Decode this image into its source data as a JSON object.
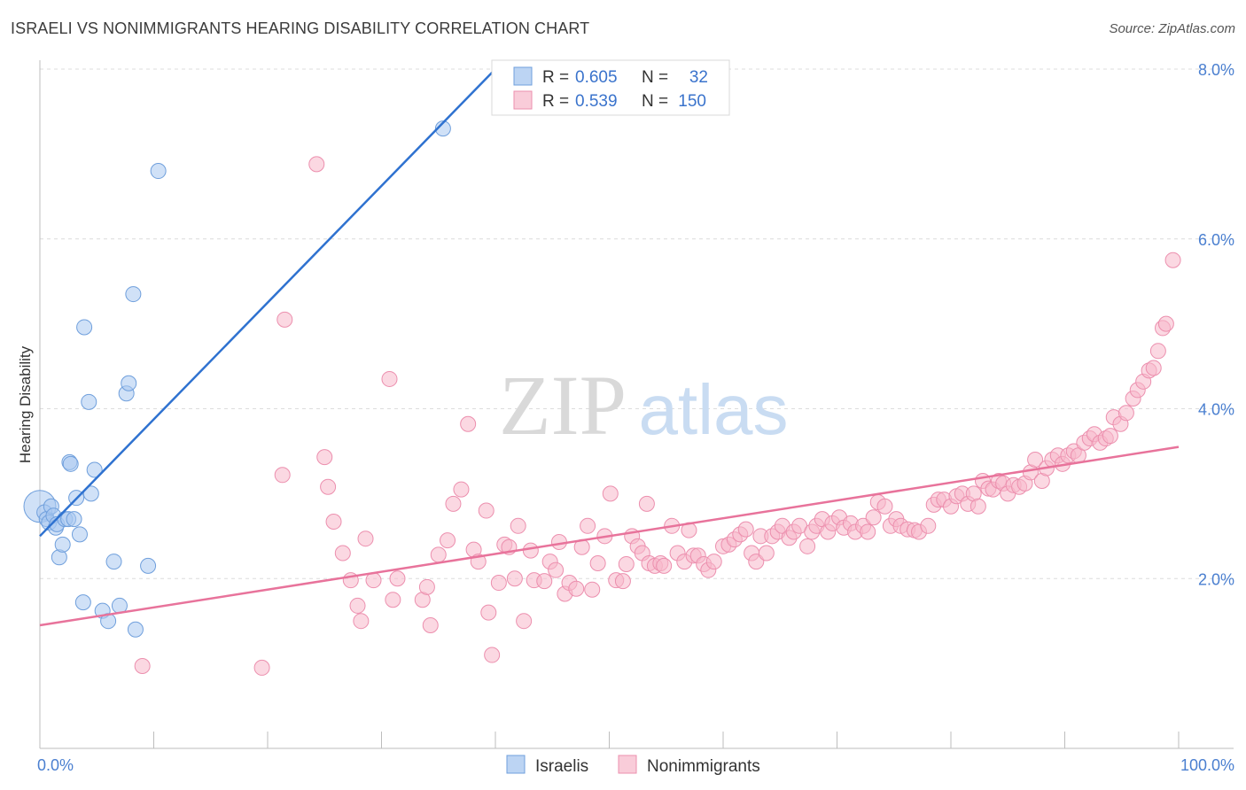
{
  "title": "ISRAELI VS NONIMMIGRANTS HEARING DISABILITY CORRELATION CHART",
  "source": "Source: ZipAtlas.com",
  "watermark": {
    "zip": "ZIP",
    "atlas": "atlas"
  },
  "colors": {
    "israelis_fill": "#a9c8f0",
    "israelis_stroke": "#6f9fdc",
    "israelis_line": "#2f72d0",
    "nonimm_fill": "#f7b8cb",
    "nonimm_stroke": "#ec8fae",
    "nonimm_line": "#e8739b",
    "tick_text": "#4a7fd0",
    "grid": "#dcdcdc"
  },
  "legend": {
    "row1": {
      "r_label": "R =",
      "r_value": "0.605",
      "n_label": "N =",
      "n_value": "32"
    },
    "row2": {
      "r_label": "R =",
      "r_value": "0.539",
      "n_label": "N =",
      "n_value": "150"
    }
  },
  "chart_data": {
    "type": "scatter",
    "title": "ISRAELI VS NONIMMIGRANTS HEARING DISABILITY CORRELATION CHART",
    "xlabel": "",
    "ylabel": "Hearing Disability",
    "xlim": [
      0,
      100
    ],
    "ylim": [
      0,
      8.0
    ],
    "x_tick_labels": [
      "0.0%",
      "100.0%"
    ],
    "y_ticks": [
      2.0,
      4.0,
      6.0,
      8.0
    ],
    "y_tick_labels": [
      "2.0%",
      "4.0%",
      "6.0%",
      "8.0%"
    ],
    "legend_position": "top-center",
    "series": [
      {
        "name": "Israelis",
        "trend": {
          "x0": 0,
          "y0": 2.5,
          "x1": 40,
          "y1": 8.0
        },
        "points": [
          [
            0,
            2.85
          ],
          [
            0.4,
            2.78
          ],
          [
            0.6,
            2.7
          ],
          [
            0.8,
            2.66
          ],
          [
            1.0,
            2.85
          ],
          [
            1.2,
            2.74
          ],
          [
            1.4,
            2.6
          ],
          [
            1.5,
            2.64
          ],
          [
            1.7,
            2.25
          ],
          [
            2.0,
            2.4
          ],
          [
            2.2,
            2.7
          ],
          [
            2.5,
            2.7
          ],
          [
            2.6,
            3.37
          ],
          [
            2.7,
            3.35
          ],
          [
            3.0,
            2.7
          ],
          [
            3.2,
            2.95
          ],
          [
            3.5,
            2.52
          ],
          [
            3.8,
            1.72
          ],
          [
            3.9,
            4.96
          ],
          [
            4.3,
            4.08
          ],
          [
            4.5,
            3.0
          ],
          [
            4.8,
            3.28
          ],
          [
            5.5,
            1.62
          ],
          [
            6.0,
            1.5
          ],
          [
            6.5,
            2.2
          ],
          [
            7.0,
            1.68
          ],
          [
            7.6,
            4.18
          ],
          [
            7.8,
            4.3
          ],
          [
            8.2,
            5.35
          ],
          [
            8.4,
            1.4
          ],
          [
            9.5,
            2.15
          ],
          [
            10.4,
            6.8
          ],
          [
            35.4,
            7.3
          ]
        ]
      },
      {
        "name": "Nonimmigrants",
        "trend": {
          "x0": 0,
          "y0": 1.45,
          "x1": 100,
          "y1": 3.55
        },
        "points": [
          [
            9,
            0.97
          ],
          [
            19.5,
            0.95
          ],
          [
            21.3,
            3.22
          ],
          [
            21.5,
            5.05
          ],
          [
            24.3,
            6.88
          ],
          [
            25.0,
            3.43
          ],
          [
            25.3,
            3.08
          ],
          [
            25.8,
            2.67
          ],
          [
            26.6,
            2.3
          ],
          [
            27.3,
            1.98
          ],
          [
            27.9,
            1.68
          ],
          [
            28.2,
            1.5
          ],
          [
            28.6,
            2.47
          ],
          [
            29.3,
            1.98
          ],
          [
            30.7,
            4.35
          ],
          [
            31.0,
            1.75
          ],
          [
            31.4,
            2.0
          ],
          [
            33.6,
            1.75
          ],
          [
            34.0,
            1.9
          ],
          [
            34.3,
            1.45
          ],
          [
            35.0,
            2.28
          ],
          [
            35.8,
            2.45
          ],
          [
            36.3,
            2.88
          ],
          [
            37.0,
            3.05
          ],
          [
            37.6,
            3.82
          ],
          [
            38.1,
            2.34
          ],
          [
            38.5,
            2.2
          ],
          [
            39.2,
            2.8
          ],
          [
            39.4,
            1.6
          ],
          [
            39.7,
            1.1
          ],
          [
            40.3,
            1.95
          ],
          [
            40.8,
            2.4
          ],
          [
            41.2,
            2.37
          ],
          [
            41.7,
            2.0
          ],
          [
            42.0,
            2.62
          ],
          [
            42.5,
            1.5
          ],
          [
            43.1,
            2.33
          ],
          [
            43.4,
            1.98
          ],
          [
            44.3,
            1.97
          ],
          [
            44.8,
            2.2
          ],
          [
            45.3,
            2.1
          ],
          [
            45.6,
            2.43
          ],
          [
            46.1,
            1.82
          ],
          [
            46.5,
            1.95
          ],
          [
            47.1,
            1.88
          ],
          [
            47.6,
            2.37
          ],
          [
            48.1,
            2.62
          ],
          [
            48.5,
            1.87
          ],
          [
            49.0,
            2.18
          ],
          [
            49.6,
            2.5
          ],
          [
            50.1,
            3.0
          ],
          [
            50.6,
            1.98
          ],
          [
            51.2,
            1.97
          ],
          [
            51.5,
            2.17
          ],
          [
            52.0,
            2.5
          ],
          [
            52.5,
            2.38
          ],
          [
            52.9,
            2.3
          ],
          [
            53.3,
            2.88
          ],
          [
            53.5,
            2.18
          ],
          [
            54.0,
            2.15
          ],
          [
            54.5,
            2.18
          ],
          [
            54.8,
            2.15
          ],
          [
            55.5,
            2.62
          ],
          [
            56.0,
            2.3
          ],
          [
            56.6,
            2.2
          ],
          [
            57.0,
            2.57
          ],
          [
            57.4,
            2.27
          ],
          [
            57.8,
            2.27
          ],
          [
            58.3,
            2.17
          ],
          [
            58.7,
            2.1
          ],
          [
            59.2,
            2.2
          ],
          [
            60.0,
            2.38
          ],
          [
            60.5,
            2.4
          ],
          [
            61.0,
            2.46
          ],
          [
            61.5,
            2.52
          ],
          [
            62.0,
            2.58
          ],
          [
            62.5,
            2.3
          ],
          [
            62.9,
            2.2
          ],
          [
            63.3,
            2.5
          ],
          [
            63.8,
            2.3
          ],
          [
            64.3,
            2.5
          ],
          [
            64.8,
            2.55
          ],
          [
            65.2,
            2.62
          ],
          [
            65.8,
            2.48
          ],
          [
            66.2,
            2.55
          ],
          [
            66.7,
            2.62
          ],
          [
            67.4,
            2.38
          ],
          [
            67.8,
            2.55
          ],
          [
            68.2,
            2.62
          ],
          [
            68.7,
            2.7
          ],
          [
            69.2,
            2.55
          ],
          [
            69.6,
            2.65
          ],
          [
            70.2,
            2.72
          ],
          [
            70.6,
            2.6
          ],
          [
            71.2,
            2.65
          ],
          [
            71.6,
            2.55
          ],
          [
            72.3,
            2.62
          ],
          [
            72.7,
            2.55
          ],
          [
            73.2,
            2.72
          ],
          [
            73.6,
            2.9
          ],
          [
            74.2,
            2.85
          ],
          [
            74.7,
            2.62
          ],
          [
            75.2,
            2.7
          ],
          [
            75.6,
            2.62
          ],
          [
            76.2,
            2.58
          ],
          [
            76.8,
            2.57
          ],
          [
            77.2,
            2.55
          ],
          [
            78.0,
            2.62
          ],
          [
            78.5,
            2.87
          ],
          [
            78.9,
            2.93
          ],
          [
            79.4,
            2.93
          ],
          [
            80.0,
            2.85
          ],
          [
            80.5,
            2.97
          ],
          [
            81.0,
            3.0
          ],
          [
            81.5,
            2.88
          ],
          [
            82.0,
            3.0
          ],
          [
            82.4,
            2.85
          ],
          [
            82.8,
            3.15
          ],
          [
            83.3,
            3.06
          ],
          [
            83.7,
            3.05
          ],
          [
            84.2,
            3.15
          ],
          [
            84.6,
            3.12
          ],
          [
            85.0,
            3.0
          ],
          [
            85.5,
            3.1
          ],
          [
            86.0,
            3.08
          ],
          [
            86.5,
            3.12
          ],
          [
            87.0,
            3.25
          ],
          [
            87.4,
            3.4
          ],
          [
            88.0,
            3.15
          ],
          [
            88.4,
            3.3
          ],
          [
            88.9,
            3.4
          ],
          [
            89.4,
            3.45
          ],
          [
            89.8,
            3.35
          ],
          [
            90.3,
            3.45
          ],
          [
            90.8,
            3.5
          ],
          [
            91.2,
            3.45
          ],
          [
            91.7,
            3.6
          ],
          [
            92.2,
            3.65
          ],
          [
            92.6,
            3.7
          ],
          [
            93.1,
            3.6
          ],
          [
            93.6,
            3.65
          ],
          [
            94.0,
            3.68
          ],
          [
            94.3,
            3.9
          ],
          [
            94.9,
            3.82
          ],
          [
            95.4,
            3.95
          ],
          [
            96.0,
            4.12
          ],
          [
            96.4,
            4.22
          ],
          [
            96.9,
            4.32
          ],
          [
            97.4,
            4.45
          ],
          [
            97.8,
            4.48
          ],
          [
            98.2,
            4.68
          ],
          [
            98.6,
            4.95
          ],
          [
            98.9,
            5.0
          ],
          [
            99.5,
            5.75
          ]
        ]
      }
    ]
  }
}
